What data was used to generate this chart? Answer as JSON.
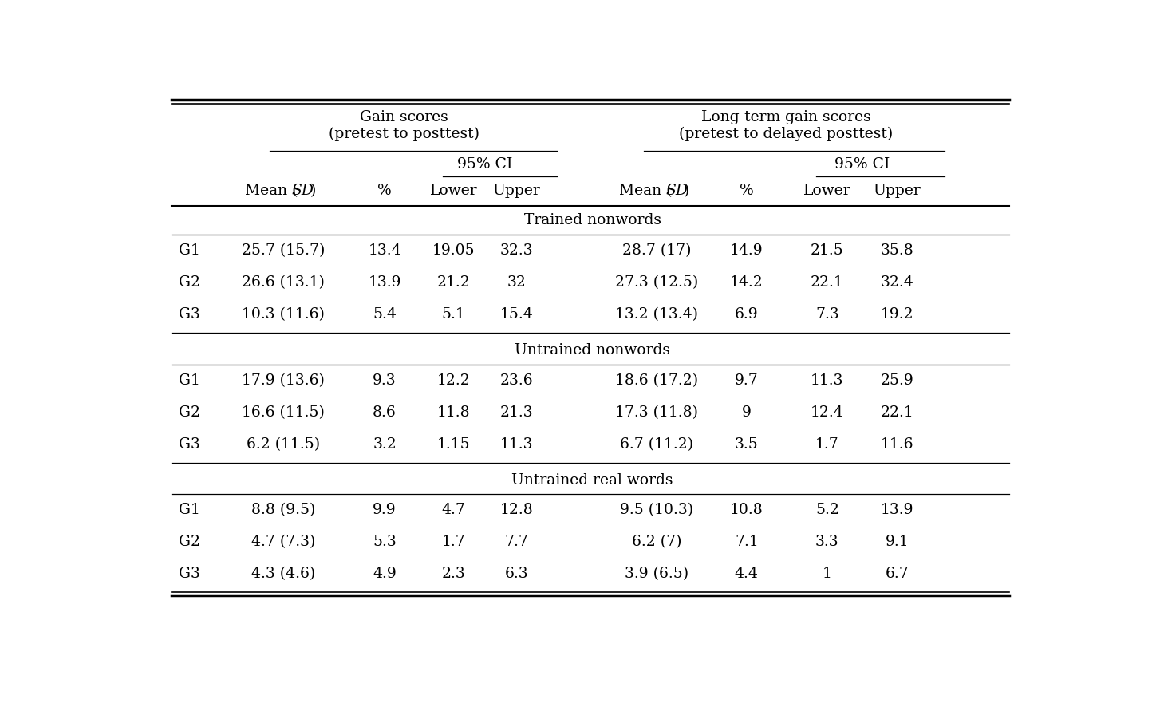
{
  "sections": [
    {
      "section_label": "Trained nonwords",
      "rows": [
        [
          "G1",
          "25.7 (15.7)",
          "13.4",
          "19.05",
          "32.3",
          "28.7 (17)",
          "14.9",
          "21.5",
          "35.8"
        ],
        [
          "G2",
          "26.6 (13.1)",
          "13.9",
          "21.2",
          "32",
          "27.3 (12.5)",
          "14.2",
          "22.1",
          "32.4"
        ],
        [
          "G3",
          "10.3 (11.6)",
          "5.4",
          "5.1",
          "15.4",
          "13.2 (13.4)",
          "6.9",
          "7.3",
          "19.2"
        ]
      ]
    },
    {
      "section_label": "Untrained nonwords",
      "rows": [
        [
          "G1",
          "17.9 (13.6)",
          "9.3",
          "12.2",
          "23.6",
          "18.6 (17.2)",
          "9.7",
          "11.3",
          "25.9"
        ],
        [
          "G2",
          "16.6 (11.5)",
          "8.6",
          "11.8",
          "21.3",
          "17.3 (11.8)",
          "9",
          "12.4",
          "22.1"
        ],
        [
          "G3",
          "6.2 (11.5)",
          "3.2",
          "1.15",
          "11.3",
          "6.7 (11.2)",
          "3.5",
          "1.7",
          "11.6"
        ]
      ]
    },
    {
      "section_label": "Untrained real words",
      "rows": [
        [
          "G1",
          "8.8 (9.5)",
          "9.9",
          "4.7",
          "12.8",
          "9.5 (10.3)",
          "10.8",
          "5.2",
          "13.9"
        ],
        [
          "G2",
          "4.7 (7.3)",
          "5.3",
          "1.7",
          "7.7",
          "6.2 (7)",
          "7.1",
          "3.3",
          "9.1"
        ],
        [
          "G3",
          "4.3 (4.6)",
          "4.9",
          "2.3",
          "6.3",
          "3.9 (6.5)",
          "4.4",
          "1",
          "6.7"
        ]
      ]
    }
  ],
  "gain_label": "Gain scores\n(pretest to posttest)",
  "lt_label": "Long-term gain scores\n(pretest to delayed posttest)",
  "ci_label": "95% CI",
  "col_labels": [
    "",
    "Mean (SD)",
    "%",
    "Lower",
    "Upper",
    "Mean (SD)",
    "%",
    "Lower",
    "Upper"
  ],
  "font_size": 13.5,
  "bg_color": "#ffffff"
}
